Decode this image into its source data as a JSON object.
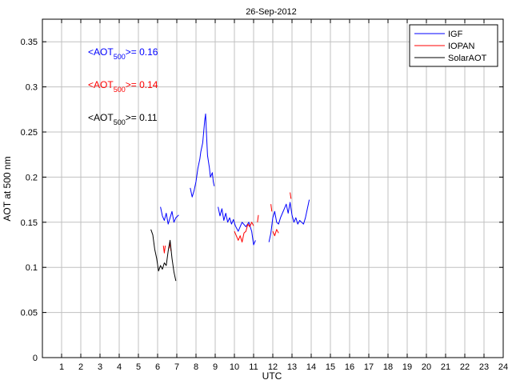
{
  "chart_data": {
    "type": "line",
    "title": "26-Sep-2012",
    "xlabel": "UTC",
    "ylabel": "AOT at 500 nm",
    "xlim": [
      0,
      24
    ],
    "ylim": [
      0,
      0.375
    ],
    "xticks": [
      1,
      2,
      3,
      4,
      5,
      6,
      7,
      8,
      9,
      10,
      11,
      12,
      13,
      14,
      15,
      16,
      17,
      18,
      19,
      20,
      21,
      22,
      23,
      24
    ],
    "yticks": [
      0,
      0.05,
      0.1,
      0.15,
      0.2,
      0.25,
      0.3,
      0.35
    ],
    "ytick_labels": [
      "0",
      "0.05",
      "0.1",
      "0.15",
      "0.2",
      "0.25",
      "0.3",
      "0.35"
    ],
    "grid": true,
    "legend_position": "top-right",
    "series": [
      {
        "name": "IGF",
        "color": "#0000ff",
        "segments": [
          [
            [
              6.15,
              0.167
            ],
            [
              6.25,
              0.157
            ],
            [
              6.35,
              0.152
            ],
            [
              6.45,
              0.16
            ],
            [
              6.55,
              0.148
            ],
            [
              6.65,
              0.155
            ],
            [
              6.75,
              0.162
            ],
            [
              6.85,
              0.15
            ],
            [
              6.95,
              0.155
            ],
            [
              7.1,
              0.158
            ]
          ],
          [
            [
              7.7,
              0.188
            ],
            [
              7.8,
              0.178
            ],
            [
              7.9,
              0.185
            ],
            [
              8.0,
              0.195
            ],
            [
              8.1,
              0.21
            ],
            [
              8.2,
              0.22
            ],
            [
              8.25,
              0.228
            ],
            [
              8.35,
              0.238
            ],
            [
              8.4,
              0.25
            ],
            [
              8.45,
              0.262
            ],
            [
              8.5,
              0.27
            ],
            [
              8.55,
              0.246
            ],
            [
              8.6,
              0.224
            ],
            [
              8.7,
              0.21
            ],
            [
              8.75,
              0.2
            ],
            [
              8.85,
              0.205
            ],
            [
              8.9,
              0.195
            ],
            [
              8.95,
              0.19
            ]
          ],
          [
            [
              9.15,
              0.167
            ],
            [
              9.25,
              0.157
            ],
            [
              9.35,
              0.165
            ],
            [
              9.45,
              0.152
            ],
            [
              9.55,
              0.16
            ],
            [
              9.65,
              0.15
            ],
            [
              9.75,
              0.155
            ],
            [
              9.85,
              0.148
            ],
            [
              9.95,
              0.153
            ],
            [
              10.05,
              0.146
            ],
            [
              10.2,
              0.14
            ],
            [
              10.4,
              0.15
            ],
            [
              10.6,
              0.145
            ],
            [
              10.75,
              0.15
            ],
            [
              10.9,
              0.14
            ],
            [
              11.0,
              0.125
            ],
            [
              11.1,
              0.13
            ]
          ],
          [
            [
              11.8,
              0.128
            ],
            [
              11.9,
              0.138
            ],
            [
              12.0,
              0.155
            ],
            [
              12.1,
              0.162
            ],
            [
              12.2,
              0.15
            ],
            [
              12.3,
              0.148
            ],
            [
              12.4,
              0.155
            ],
            [
              12.5,
              0.16
            ],
            [
              12.6,
              0.165
            ],
            [
              12.7,
              0.17
            ],
            [
              12.8,
              0.16
            ],
            [
              12.9,
              0.172
            ],
            [
              13.0,
              0.158
            ],
            [
              13.1,
              0.15
            ],
            [
              13.2,
              0.155
            ],
            [
              13.3,
              0.148
            ],
            [
              13.4,
              0.152
            ],
            [
              13.5,
              0.15
            ],
            [
              13.6,
              0.148
            ],
            [
              13.7,
              0.155
            ],
            [
              13.8,
              0.165
            ],
            [
              13.9,
              0.175
            ]
          ]
        ]
      },
      {
        "name": "IOPAN",
        "color": "#ff0000",
        "segments": [
          [
            [
              6.3,
              0.124
            ],
            [
              6.35,
              0.116
            ],
            [
              6.4,
              0.124
            ]
          ],
          [
            [
              6.6,
              0.121
            ],
            [
              6.65,
              0.128
            ],
            [
              6.7,
              0.118
            ]
          ],
          [
            [
              10.0,
              0.14
            ],
            [
              10.1,
              0.135
            ],
            [
              10.2,
              0.13
            ],
            [
              10.3,
              0.135
            ],
            [
              10.4,
              0.128
            ],
            [
              10.5,
              0.138
            ],
            [
              10.6,
              0.14
            ],
            [
              10.7,
              0.148
            ],
            [
              10.8,
              0.145
            ],
            [
              10.9,
              0.15
            ],
            [
              11.0,
              0.146
            ]
          ],
          [
            [
              11.2,
              0.15
            ],
            [
              11.25,
              0.158
            ]
          ],
          [
            [
              11.9,
              0.17
            ],
            [
              11.95,
              0.162
            ]
          ],
          [
            [
              12.0,
              0.14
            ],
            [
              12.1,
              0.135
            ],
            [
              12.2,
              0.142
            ],
            [
              12.3,
              0.138
            ]
          ],
          [
            [
              12.9,
              0.183
            ],
            [
              12.95,
              0.176
            ]
          ]
        ]
      },
      {
        "name": "SolarAOT",
        "color": "#000000",
        "segments": [
          [
            [
              5.65,
              0.142
            ],
            [
              5.75,
              0.136
            ],
            [
              5.85,
              0.12
            ],
            [
              5.95,
              0.11
            ],
            [
              6.05,
              0.096
            ],
            [
              6.15,
              0.102
            ],
            [
              6.25,
              0.098
            ],
            [
              6.35,
              0.105
            ],
            [
              6.45,
              0.102
            ],
            [
              6.55,
              0.118
            ],
            [
              6.65,
              0.13
            ],
            [
              6.75,
              0.11
            ],
            [
              6.85,
              0.095
            ],
            [
              6.95,
              0.085
            ]
          ]
        ]
      }
    ],
    "annotations": [
      {
        "prefix": "<AOT",
        "sub": "500",
        "suffix": ">= 0.16",
        "color": "#0000ff"
      },
      {
        "prefix": "<AOT",
        "sub": "500",
        "suffix": ">= 0.14",
        "color": "#ff0000"
      },
      {
        "prefix": "<AOT",
        "sub": "500",
        "suffix": ">= 0.11",
        "color": "#000000"
      }
    ]
  }
}
